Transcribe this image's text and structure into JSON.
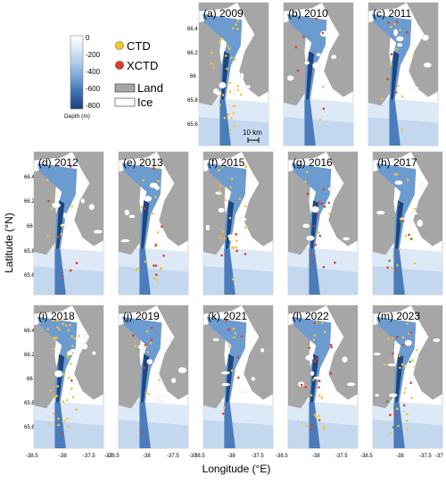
{
  "colorbar": {
    "ticks": [
      "0",
      "-200",
      "-400",
      "-600",
      "-800"
    ],
    "title": "Depth (m)",
    "colors": [
      "#ffffff",
      "#dbe8f6",
      "#b8d2ec",
      "#8db4dd",
      "#5d8fc7",
      "#3e6cb0",
      "#264f92",
      "#163d7b"
    ]
  },
  "legend": {
    "items": [
      {
        "label": "CTD",
        "kind": "marker",
        "color": "#f4c430"
      },
      {
        "label": "XCTD",
        "kind": "marker",
        "color": "#e03a2e"
      },
      {
        "label": "Land",
        "kind": "patch",
        "color": "#a6a6a6"
      },
      {
        "label": "Ice",
        "kind": "patch",
        "color": "#ffffff"
      }
    ]
  },
  "scale_bar": {
    "label": "10 km"
  },
  "axes": {
    "xlabel": "Longitude (°E)",
    "ylabel": "Latitude (°N)",
    "lat_ticks": [
      "66.4",
      "66.2",
      "66",
      "65.8",
      "65.6"
    ],
    "lon_ticks": [
      "-38.5",
      "-38",
      "-37.5",
      "-37"
    ]
  },
  "colors": {
    "land": "#a6a6a6",
    "ice": "#ffffff",
    "ctd": "#f4c430",
    "xctd": "#e03a2e",
    "extra": "#3a9a45"
  },
  "chart_data": {
    "type": "map",
    "panels": [
      {
        "label": "(a) 2009",
        "ctd": 30,
        "xctd": 0,
        "extra": 0
      },
      {
        "label": "(b) 2010",
        "ctd": 2,
        "xctd": 6,
        "extra": 0
      },
      {
        "label": "(c) 2011",
        "ctd": 10,
        "xctd": 6,
        "extra": 0
      },
      {
        "label": "(d) 2012",
        "ctd": 14,
        "xctd": 6,
        "extra": 0
      },
      {
        "label": "(e) 2013",
        "ctd": 16,
        "xctd": 8,
        "extra": 0
      },
      {
        "label": "(f) 2015",
        "ctd": 22,
        "xctd": 4,
        "extra": 0
      },
      {
        "label": "(g) 2016",
        "ctd": 4,
        "xctd": 14,
        "extra": 0
      },
      {
        "label": "(h) 2017",
        "ctd": 12,
        "xctd": 4,
        "extra": 4
      },
      {
        "label": "(i) 2018",
        "ctd": 40,
        "xctd": 2,
        "extra": 0
      },
      {
        "label": "(j) 2019",
        "ctd": 8,
        "xctd": 6,
        "extra": 0
      },
      {
        "label": "(k) 2021",
        "ctd": 6,
        "xctd": 6,
        "extra": 0
      },
      {
        "label": "(l) 2022",
        "ctd": 16,
        "xctd": 14,
        "extra": 0
      },
      {
        "label": "(m) 2023",
        "ctd": 22,
        "xctd": 8,
        "extra": 4
      }
    ],
    "xlim": [
      -38.5,
      -37
    ],
    "ylim": [
      65.5,
      66.45
    ]
  }
}
